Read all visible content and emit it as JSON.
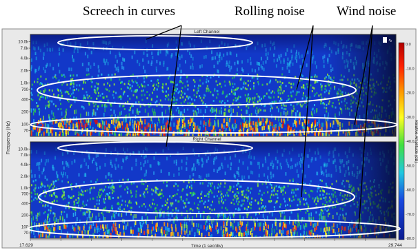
{
  "annotations": {
    "screech": "Screech in curves",
    "rolling": "Rolling noise",
    "wind": "Wind noise"
  },
  "panels": {
    "top_title": "Left Channel",
    "bottom_title": "Right Channel"
  },
  "axes": {
    "y_label": "Frequency (Hz)",
    "x_label": "Time (1 sec/div)",
    "x_start": "17.629",
    "x_end": "29.744",
    "freq_ticks": [
      "10.0k",
      "7.0k",
      "4.0k",
      "2.0k",
      "1.0k",
      "700",
      "400",
      "200",
      "100",
      "70"
    ],
    "colorbar_label": "Relative Amplitude (dB)",
    "colorbar_ticks": [
      "0.0",
      "-10.0",
      "-20.0",
      "-30.0",
      "-40.0",
      "-50.0",
      "-60.0",
      "-70.0",
      "-80.0"
    ]
  },
  "colors": {
    "spectro_bg": "#1238c8",
    "ellipse": "#ffffff"
  }
}
